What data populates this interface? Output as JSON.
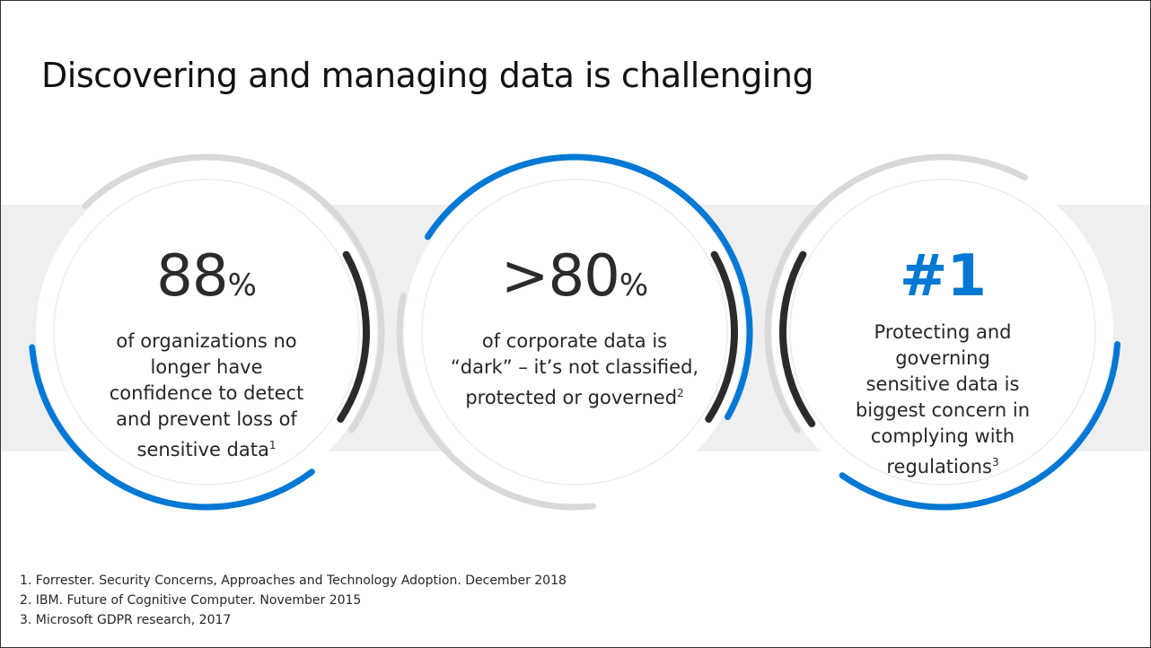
{
  "title": "Discovering and managing data is challenging",
  "colors": {
    "accent": "#0078d4",
    "dark": "#2b2b2b",
    "ring_gray": "#d9d9d9",
    "band": "#efefef"
  },
  "stats": [
    {
      "value": "88",
      "unit": "%",
      "text": "of organizations no longer have confidence to detect and prevent loss of sensitive data",
      "footnote": "1"
    },
    {
      "value": ">80",
      "unit": "%",
      "text_line1": "of corporate data is",
      "text_line2": "“dark” – it’s not classified,",
      "text_line3": "protected or governed",
      "footnote": "2"
    },
    {
      "value": "#1",
      "text": "Protecting and governing sensitive data is biggest concern in complying with regulations",
      "footnote": "3"
    }
  ],
  "footnotes": [
    "1.  Forrester. Security Concerns, Approaches and Technology Adoption. December 2018",
    "2.  IBM. Future of Cognitive Computer. November 2015",
    "3.  Microsoft GDPR research, 2017"
  ]
}
